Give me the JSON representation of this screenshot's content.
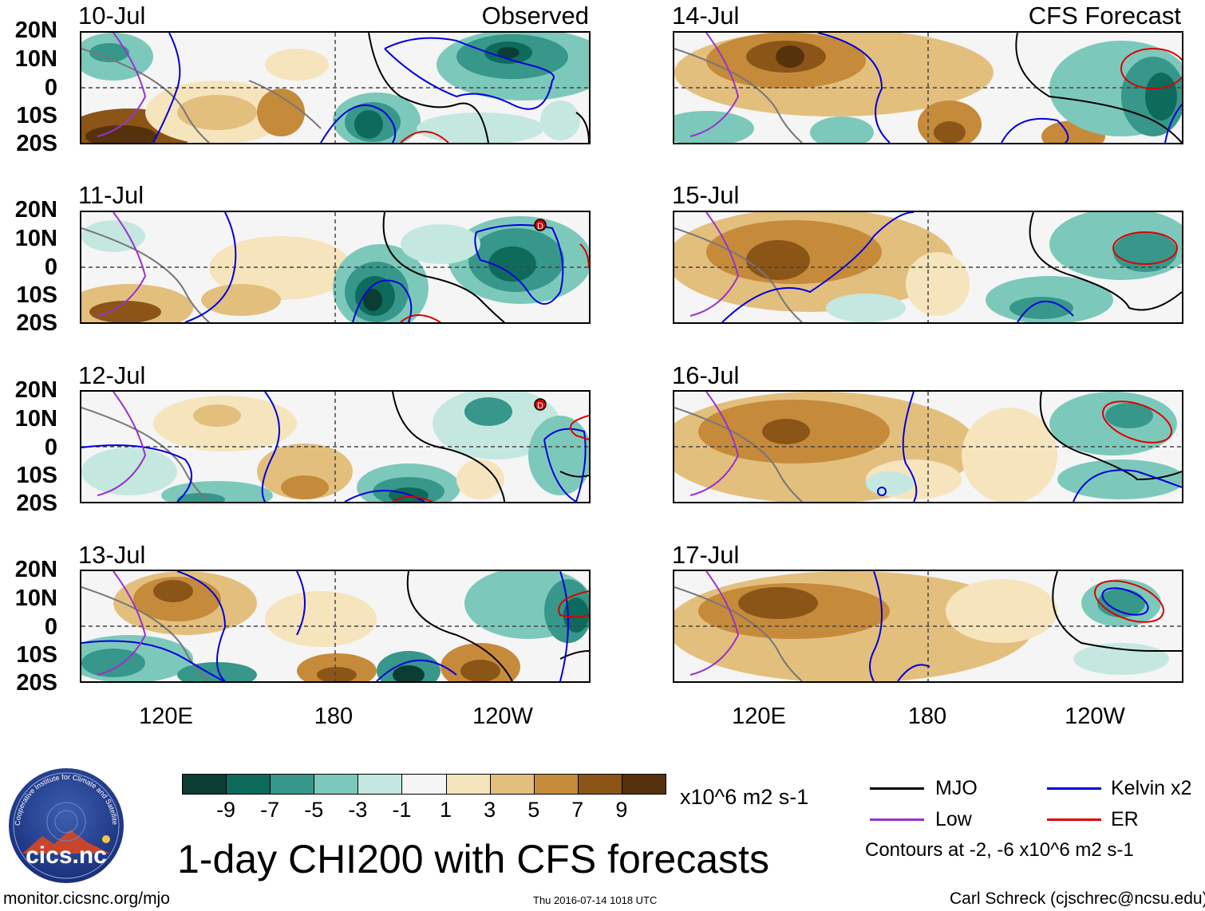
{
  "panels": {
    "observed": [
      {
        "date": "10-Jul",
        "tag": "Observed"
      },
      {
        "date": "11-Jul",
        "tag": ""
      },
      {
        "date": "12-Jul",
        "tag": ""
      },
      {
        "date": "13-Jul",
        "tag": ""
      }
    ],
    "forecast": [
      {
        "date": "14-Jul",
        "tag": "CFS Forecast"
      },
      {
        "date": "15-Jul",
        "tag": ""
      },
      {
        "date": "16-Jul",
        "tag": ""
      },
      {
        "date": "17-Jul",
        "tag": ""
      }
    ]
  },
  "axes": {
    "lat_labels": [
      "20N",
      "10N",
      "0",
      "10S",
      "20S"
    ],
    "lon_labels": [
      "120E",
      "180",
      "120W"
    ]
  },
  "colorbar": {
    "colors": [
      "#0b3d33",
      "#0e6b5c",
      "#36978a",
      "#7cc9bb",
      "#c4e8e0",
      "#f5f5f5",
      "#f6e4bd",
      "#e3bf7e",
      "#c68a3b",
      "#8b5518",
      "#55320c"
    ],
    "labels": [
      "-9",
      "-7",
      "-5",
      "-3",
      "-1",
      "1",
      "3",
      "5",
      "7",
      "9"
    ],
    "units": "x10^6 m2 s-1"
  },
  "legend": {
    "items": [
      {
        "label": "MJO",
        "color": "#000000"
      },
      {
        "label": "Kelvin x2",
        "color": "#0000dd"
      },
      {
        "label": "Low",
        "color": "#9932cc"
      },
      {
        "label": "ER",
        "color": "#dd0000"
      }
    ],
    "contours_note": "Contours at -2, -6 x10^6 m2 s-1"
  },
  "title": "1-day CHI200 with CFS forecasts",
  "logo_text": "cics.nc",
  "logo_ring_text": "Cooperative Institute for Climate and Satellites",
  "footer": {
    "url": "monitor.cicsnc.org/mjo",
    "timestamp": "Thu 2016-07-14 1018 UTC",
    "author": "Carl Schreck (cjschrec@ncsu.edu)"
  },
  "storm_marker": "D"
}
